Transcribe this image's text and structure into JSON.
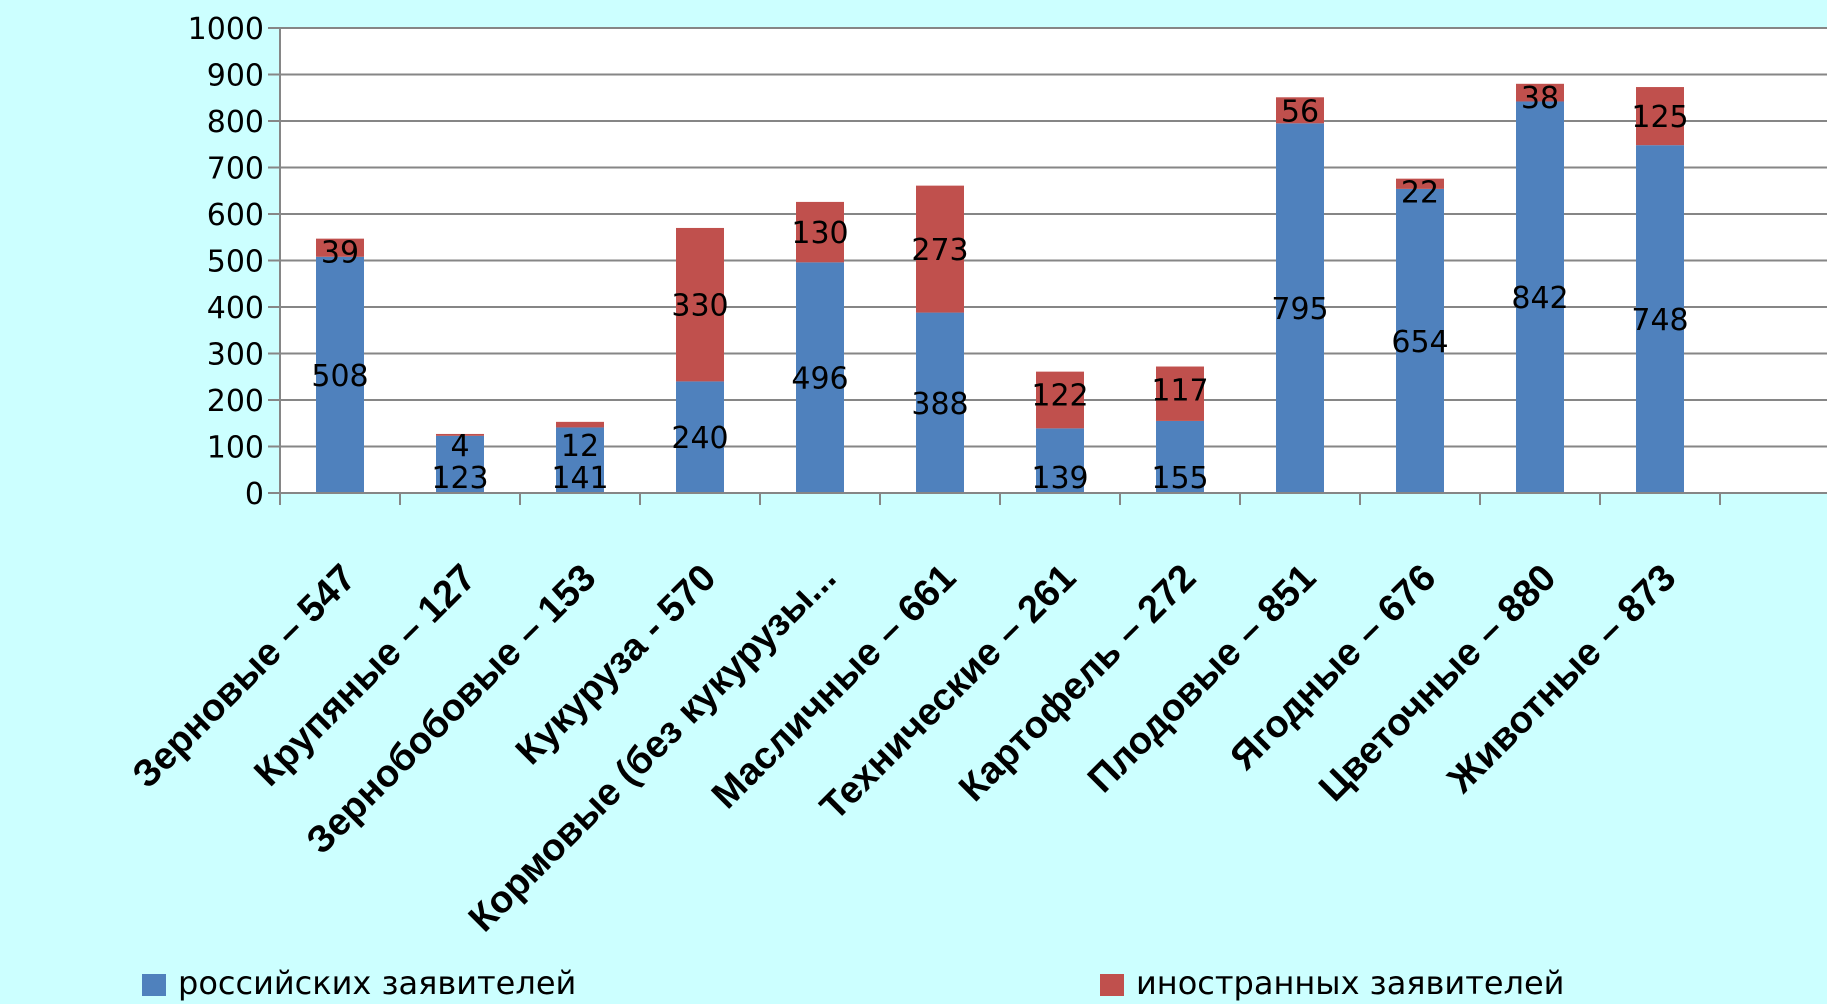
{
  "chart_data": {
    "type": "bar",
    "stacked": true,
    "categories": [
      "Зерновые – 547",
      "Крупяные – 127",
      "Зернобобовые – 153",
      "Кукуруза - 570",
      "Кормовые (без кукурузы...",
      "Масличные – 661",
      "Технические – 261",
      "Картофель – 272",
      "Плодовые – 851",
      "Ягодные – 676",
      "Цветочные – 880",
      "Животные – 873"
    ],
    "series": [
      {
        "name": "российских заявителей",
        "color": "#4f81bd",
        "values": [
          508,
          123,
          141,
          240,
          496,
          388,
          139,
          155,
          795,
          654,
          842,
          748
        ]
      },
      {
        "name": "иностранных заявителей",
        "color": "#c0504d",
        "values": [
          39,
          4,
          12,
          330,
          130,
          273,
          122,
          117,
          56,
          22,
          38,
          125
        ]
      }
    ],
    "ylim": [
      0,
      1000
    ],
    "yticks": [
      "0",
      "100",
      "200",
      "300",
      "400",
      "500",
      "600",
      "700",
      "800",
      "900",
      "1000"
    ],
    "grid": true,
    "legend_position": "bottom",
    "xlabel": "",
    "ylabel": "",
    "title": ""
  },
  "colors": {
    "background": "#ccffff",
    "plot_background": "#ffffff",
    "gridline": "#868686",
    "axis": "#868686"
  }
}
